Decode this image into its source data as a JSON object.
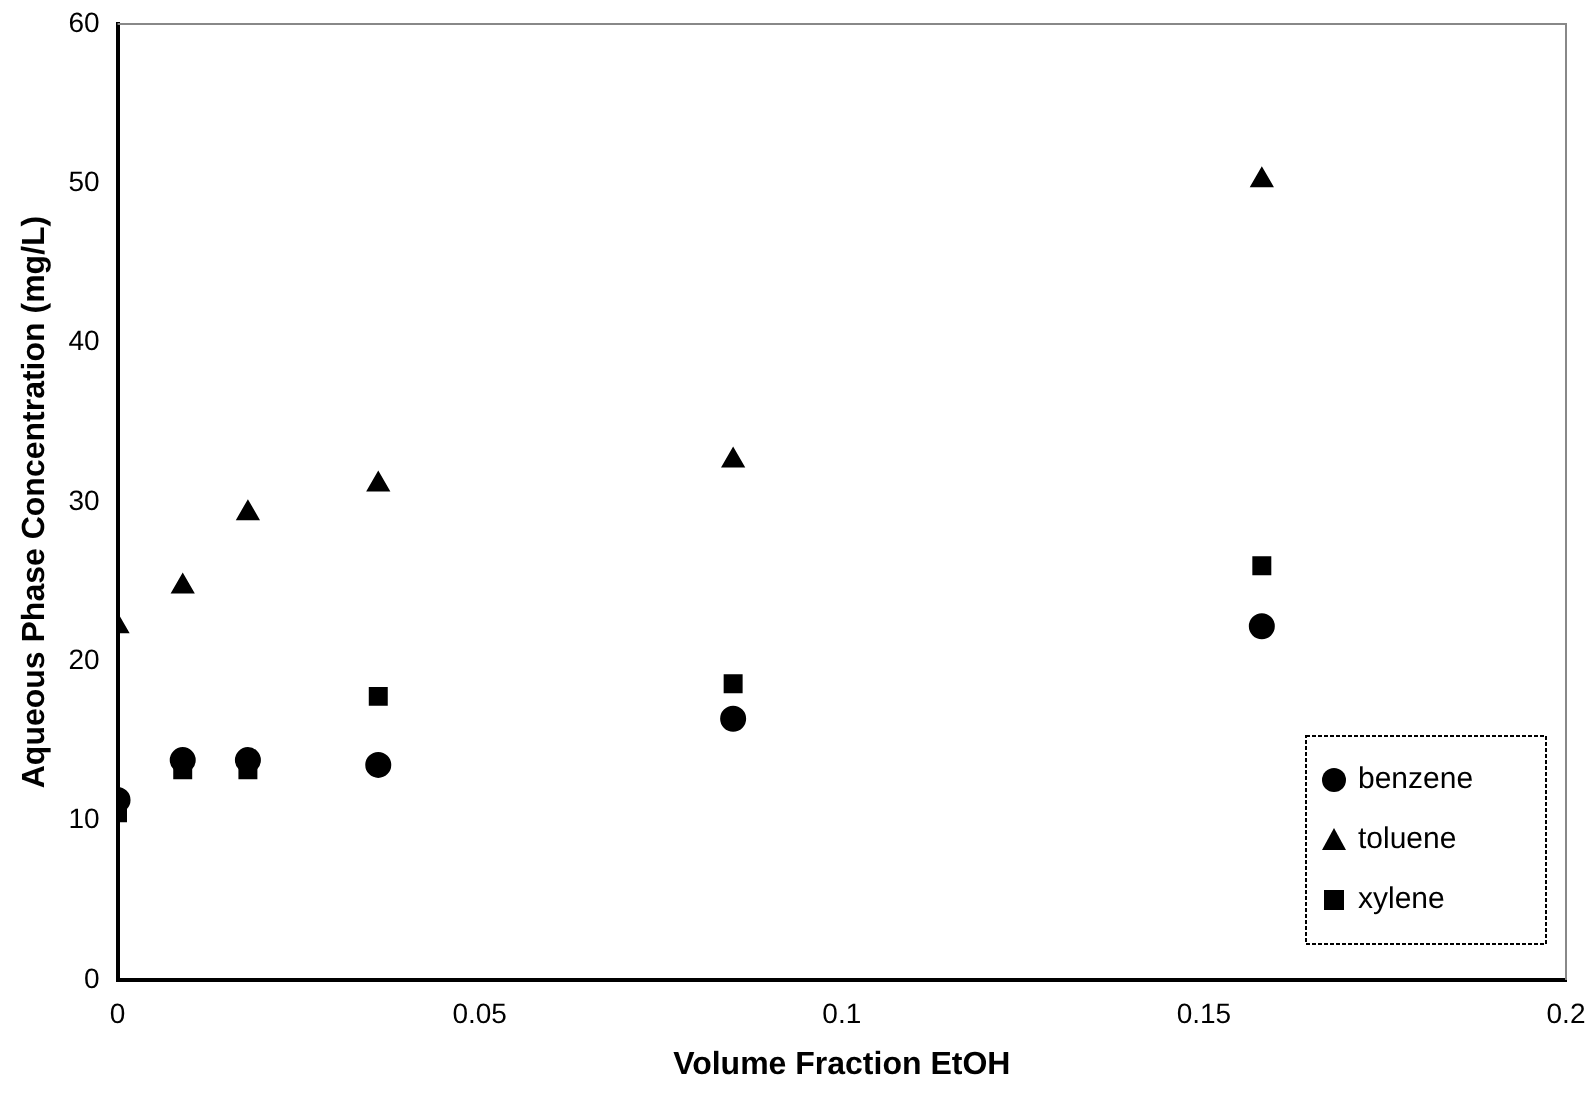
{
  "chart_data": {
    "type": "scatter",
    "xlabel": "Volume Fraction EtOH",
    "ylabel": "Aqueous Phase Concentration (mg/L)",
    "x": [
      0,
      0.009,
      0.018,
      0.036,
      0.085,
      0.158
    ],
    "series": [
      {
        "name": "benzene",
        "color": "#000000",
        "marker": "circle",
        "values": [
          11.3,
          13.8,
          13.8,
          13.5,
          16.4,
          22.2
        ]
      },
      {
        "name": "toluene",
        "color": "#000000",
        "marker": "triangle",
        "values": [
          22.2,
          24.7,
          29.3,
          31.1,
          32.6,
          50.2
        ]
      },
      {
        "name": "xylene",
        "color": "#000000",
        "marker": "square",
        "values": [
          10.5,
          13.2,
          13.2,
          17.8,
          18.6,
          26.0
        ]
      }
    ],
    "xlim": [
      0,
      0.2
    ],
    "xticks": [
      0,
      0.05,
      0.1,
      0.15,
      0.2
    ],
    "ylim": [
      0,
      60
    ],
    "yticks": [
      0,
      10,
      20,
      30,
      40,
      50,
      60
    ],
    "grid": false,
    "legend": "bottom right"
  }
}
